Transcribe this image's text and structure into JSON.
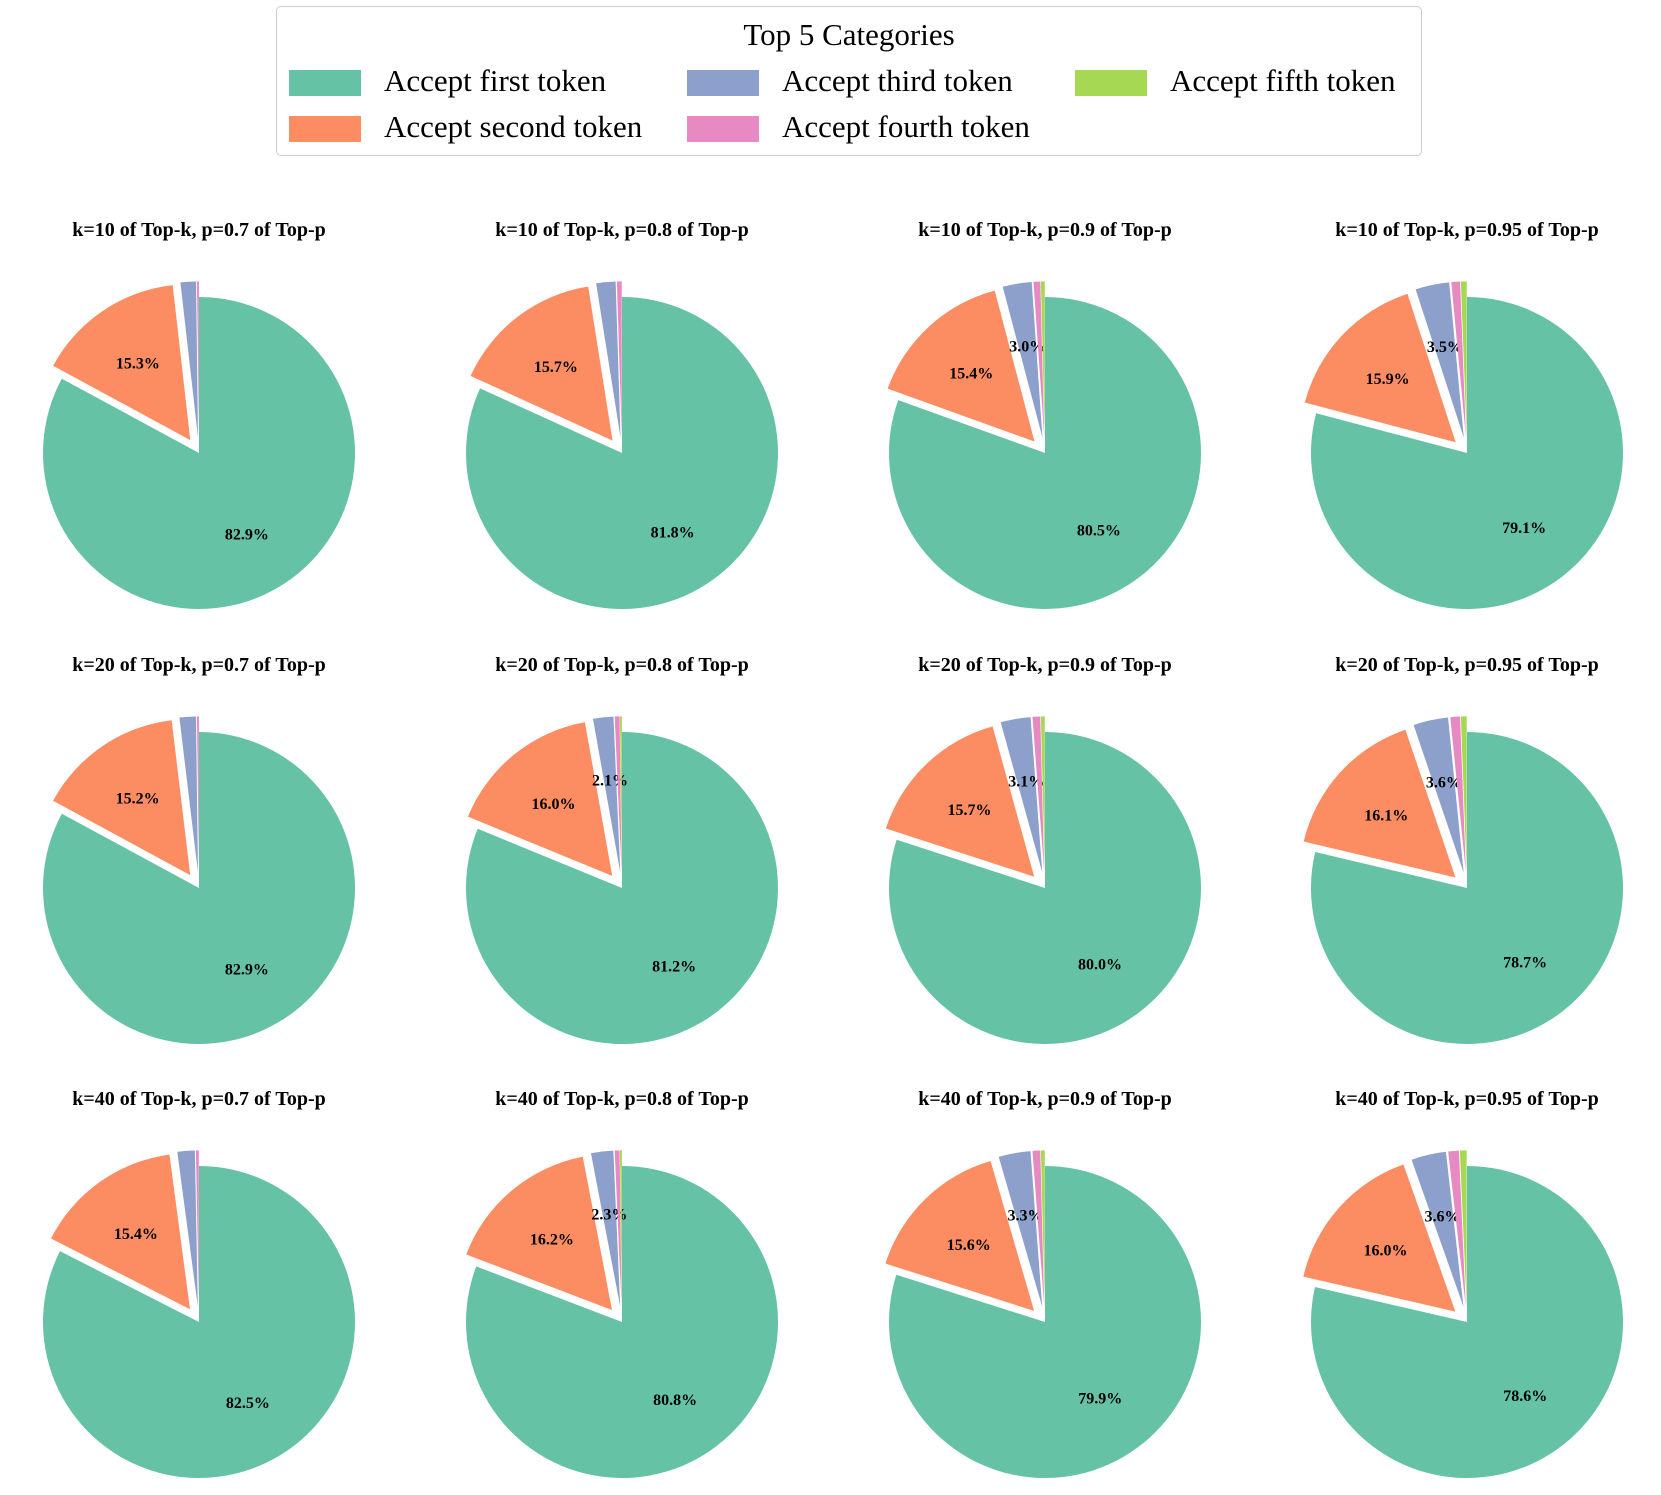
{
  "legend": {
    "title": "Top 5 Categories",
    "items": [
      {
        "label": "Accept first token",
        "color": "#66c2a5"
      },
      {
        "label": "Accept second token",
        "color": "#fc8d62"
      },
      {
        "label": "Accept third token",
        "color": "#8da0cb"
      },
      {
        "label": "Accept fourth token",
        "color": "#e78ac3"
      },
      {
        "label": "Accept fifth token",
        "color": "#a6d854"
      }
    ]
  },
  "chart_data": [
    {
      "type": "pie",
      "title": "k=10 of Top-k, p=0.7 of Top-p",
      "categories": [
        "Accept first token",
        "Accept second token",
        "Accept third token",
        "Accept fourth token",
        "Accept fifth token"
      ],
      "values": [
        82.9,
        15.3,
        1.6,
        0.2,
        0.0
      ],
      "labels": [
        "82.9%",
        "15.3%",
        "",
        "",
        ""
      ]
    },
    {
      "type": "pie",
      "title": "k=10 of Top-k, p=0.8 of Top-p",
      "categories": [
        "Accept first token",
        "Accept second token",
        "Accept third token",
        "Accept fourth token",
        "Accept fifth token"
      ],
      "values": [
        81.8,
        15.7,
        2.0,
        0.5,
        0.0
      ],
      "labels": [
        "81.8%",
        "15.7%",
        "",
        "",
        ""
      ]
    },
    {
      "type": "pie",
      "title": "k=10 of Top-k, p=0.9 of Top-p",
      "categories": [
        "Accept first token",
        "Accept second token",
        "Accept third token",
        "Accept fourth token",
        "Accept fifth token"
      ],
      "values": [
        80.5,
        15.4,
        3.0,
        0.7,
        0.4
      ],
      "labels": [
        "80.5%",
        "15.4%",
        "3.0%",
        "",
        ""
      ]
    },
    {
      "type": "pie",
      "title": "k=10 of Top-k, p=0.95 of Top-p",
      "categories": [
        "Accept first token",
        "Accept second token",
        "Accept third token",
        "Accept fourth token",
        "Accept fifth token"
      ],
      "values": [
        79.1,
        15.9,
        3.5,
        0.9,
        0.6
      ],
      "labels": [
        "79.1%",
        "15.9%",
        "3.5%",
        "",
        ""
      ]
    },
    {
      "type": "pie",
      "title": "k=20 of Top-k, p=0.7 of Top-p",
      "categories": [
        "Accept first token",
        "Accept second token",
        "Accept third token",
        "Accept fourth token",
        "Accept fifth token"
      ],
      "values": [
        82.9,
        15.2,
        1.7,
        0.2,
        0.0
      ],
      "labels": [
        "82.9%",
        "15.2%",
        "",
        "",
        ""
      ]
    },
    {
      "type": "pie",
      "title": "k=20 of Top-k, p=0.8 of Top-p",
      "categories": [
        "Accept first token",
        "Accept second token",
        "Accept third token",
        "Accept fourth token",
        "Accept fifth token"
      ],
      "values": [
        81.2,
        16.0,
        2.1,
        0.5,
        0.2
      ],
      "labels": [
        "81.2%",
        "16.0%",
        "2.1%",
        "",
        ""
      ]
    },
    {
      "type": "pie",
      "title": "k=20 of Top-k, p=0.9 of Top-p",
      "categories": [
        "Accept first token",
        "Accept second token",
        "Accept third token",
        "Accept fourth token",
        "Accept fifth token"
      ],
      "values": [
        80.0,
        15.7,
        3.1,
        0.8,
        0.4
      ],
      "labels": [
        "80.0%",
        "15.7%",
        "3.1%",
        "",
        ""
      ]
    },
    {
      "type": "pie",
      "title": "k=20 of Top-k, p=0.95 of Top-p",
      "categories": [
        "Accept first token",
        "Accept second token",
        "Accept third token",
        "Accept fourth token",
        "Accept fifth token"
      ],
      "values": [
        78.7,
        16.1,
        3.6,
        1.0,
        0.6
      ],
      "labels": [
        "78.7%",
        "16.1%",
        "3.6%",
        "",
        ""
      ]
    },
    {
      "type": "pie",
      "title": "k=40 of Top-k, p=0.7 of Top-p",
      "categories": [
        "Accept first token",
        "Accept second token",
        "Accept third token",
        "Accept fourth token",
        "Accept fifth token"
      ],
      "values": [
        82.5,
        15.4,
        1.8,
        0.3,
        0.0
      ],
      "labels": [
        "82.5%",
        "15.4%",
        "",
        "",
        ""
      ]
    },
    {
      "type": "pie",
      "title": "k=40 of Top-k, p=0.8 of Top-p",
      "categories": [
        "Accept first token",
        "Accept second token",
        "Accept third token",
        "Accept fourth token",
        "Accept fifth token"
      ],
      "values": [
        80.8,
        16.2,
        2.3,
        0.5,
        0.2
      ],
      "labels": [
        "80.8%",
        "16.2%",
        "2.3%",
        "",
        ""
      ]
    },
    {
      "type": "pie",
      "title": "k=40 of Top-k, p=0.9 of Top-p",
      "categories": [
        "Accept first token",
        "Accept second token",
        "Accept third token",
        "Accept fourth token",
        "Accept fifth token"
      ],
      "values": [
        79.9,
        15.6,
        3.3,
        0.8,
        0.4
      ],
      "labels": [
        "79.9%",
        "15.6%",
        "3.3%",
        "",
        ""
      ]
    },
    {
      "type": "pie",
      "title": "k=40 of Top-k, p=0.95 of Top-p",
      "categories": [
        "Accept first token",
        "Accept second token",
        "Accept third token",
        "Accept fourth token",
        "Accept fifth token"
      ],
      "values": [
        78.6,
        16.0,
        3.6,
        1.1,
        0.7
      ],
      "labels": [
        "78.6%",
        "16.0%",
        "3.6%",
        "",
        ""
      ]
    }
  ]
}
